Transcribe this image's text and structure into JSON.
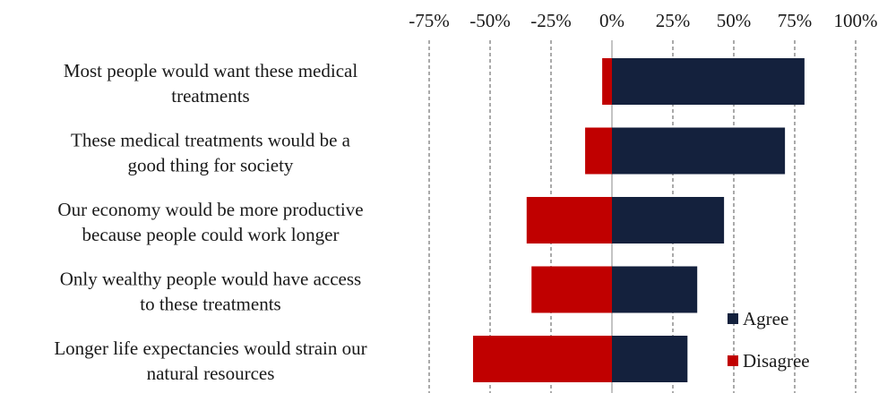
{
  "chart_data": {
    "type": "bar",
    "orientation": "horizontal",
    "stacked": "diverging",
    "title": "",
    "xlabel": "",
    "ylabel": "",
    "xlim": [
      -0.75,
      1.0
    ],
    "x_ticks": [
      "-75%",
      "-50%",
      "-25%",
      "0%",
      "25%",
      "50%",
      "75%",
      "100%"
    ],
    "x_tick_values": [
      -0.75,
      -0.5,
      -0.25,
      0,
      0.25,
      0.5,
      0.75,
      1.0
    ],
    "grid": "vertical dashed",
    "legend_position": "bottom-right",
    "categories": [
      [
        "Most people would want these medical",
        "treatments"
      ],
      [
        "These medical treatments would be a",
        "good thing for society"
      ],
      [
        "Our economy would be more productive",
        "because people could work longer"
      ],
      [
        "Only wealthy people would have access",
        "to these treatments"
      ],
      [
        "Longer life expectancies would strain our",
        "natural resources"
      ]
    ],
    "series": [
      {
        "name": "Agree",
        "color": "#14213d",
        "values": [
          0.79,
          0.71,
          0.46,
          0.35,
          0.31
        ]
      },
      {
        "name": "Disagree",
        "color": "#c00000",
        "values": [
          -0.04,
          -0.11,
          -0.35,
          -0.33,
          -0.57
        ]
      }
    ]
  }
}
